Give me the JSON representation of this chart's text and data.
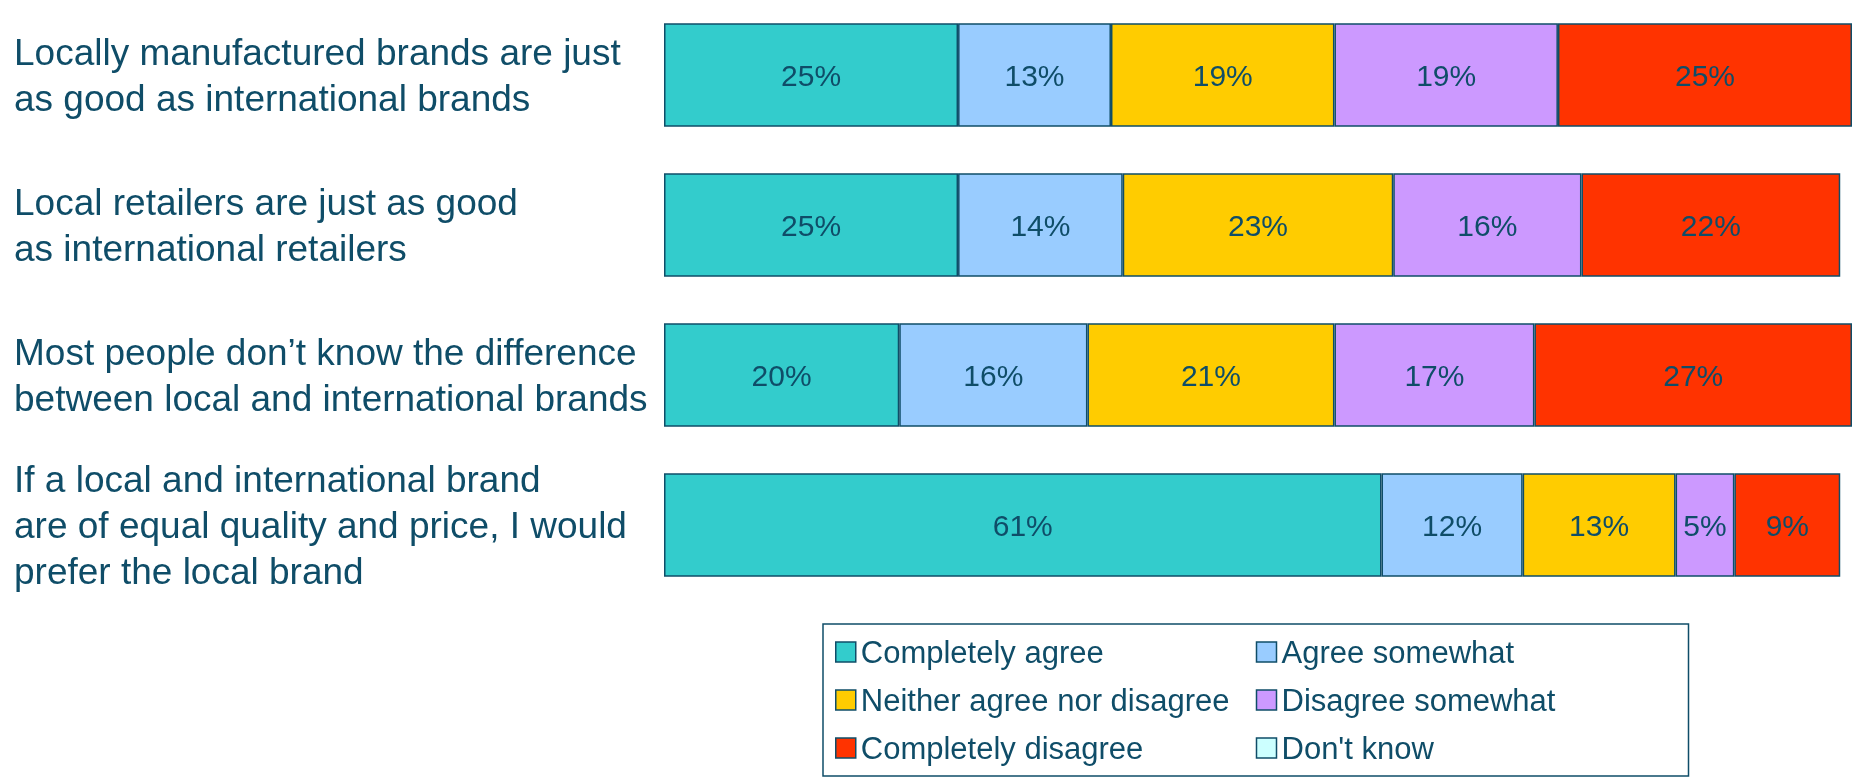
{
  "chart_data": {
    "type": "bar",
    "orientation": "horizontal",
    "stacked": true,
    "categories": [
      "Locally manufactured brands are just\nas good as international brands",
      "Local retailers are just as good\nas international retailers",
      "Most people don’t know the difference\nbetween local and international brands",
      "If a local and international brand\nare of equal quality and price, I would\nprefer the local brand"
    ],
    "series": [
      {
        "name": "Completely agree",
        "color": "#33cccc",
        "values": [
          25,
          25,
          20,
          61
        ],
        "value_labels": [
          "25%",
          "25%",
          "20%",
          "61%"
        ]
      },
      {
        "name": "Agree somewhat",
        "color": "#99ccff",
        "values": [
          13,
          14,
          16,
          12
        ],
        "value_labels": [
          "13%",
          "14%",
          "16%",
          "12%"
        ]
      },
      {
        "name": "Neither agree nor disagree",
        "color": "#ffcc00",
        "values": [
          19,
          23,
          21,
          13
        ],
        "value_labels": [
          "19%",
          "23%",
          "21%",
          "13%"
        ]
      },
      {
        "name": "Disagree somewhat",
        "color": "#cc99ff",
        "values": [
          19,
          16,
          17,
          5
        ],
        "value_labels": [
          "19%",
          "16%",
          "17%",
          "5%"
        ]
      },
      {
        "name": "Completely disagree",
        "color": "#ff3300",
        "values": [
          25,
          22,
          27,
          9
        ],
        "value_labels": [
          "25%",
          "22%",
          "27%",
          "9%"
        ]
      },
      {
        "name": "Don't know",
        "color": "#ccffff",
        "values": [
          null,
          null,
          null,
          null
        ]
      }
    ],
    "xlim": [
      0,
      101
    ],
    "legend": "bottom",
    "tick_labels": "y"
  }
}
